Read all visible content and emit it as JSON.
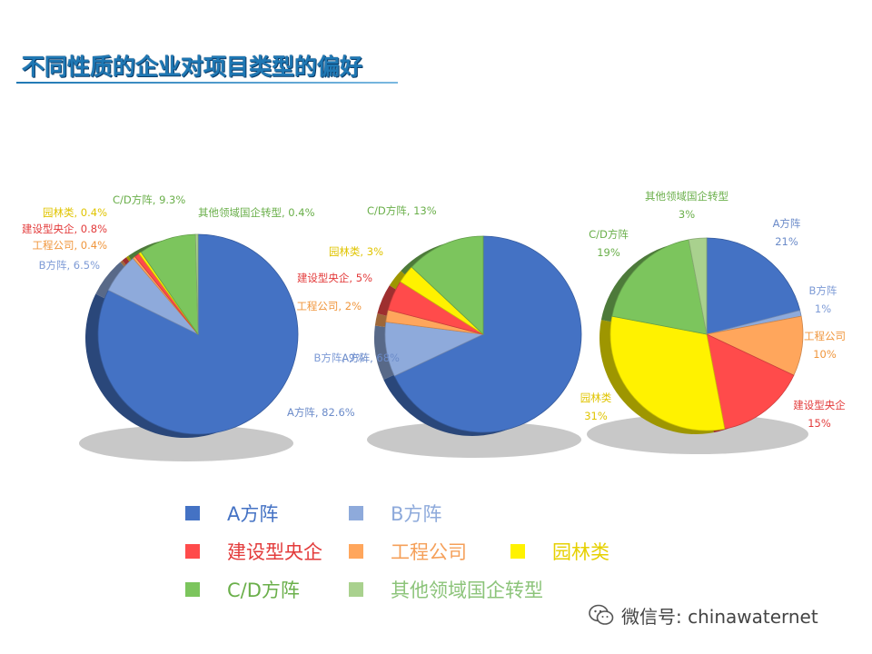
{
  "title": "不同性质的企业对项目类型的偏好",
  "colors": {
    "a": "#4472C4",
    "b": "#8EAADB",
    "build": "#FF4B4B",
    "eng": "#FFA65C",
    "garden": "#FFF200",
    "cd": "#7CC55D",
    "other": "#A9D18E"
  },
  "legend": [
    {
      "key": "a",
      "label": "A方阵"
    },
    {
      "key": "b",
      "label": "B方阵"
    },
    {
      "key": "build",
      "label": "建设型央企"
    },
    {
      "key": "eng",
      "label": "工程公司"
    },
    {
      "key": "garden",
      "label": "园林类"
    },
    {
      "key": "cd",
      "label": "C/D方阵"
    },
    {
      "key": "other",
      "label": "其他领域国企转型"
    }
  ],
  "chart_data": [
    {
      "type": "pie",
      "slices": [
        {
          "key": "a",
          "label": "A方阵, 82.6%",
          "value": 82.6
        },
        {
          "key": "b",
          "label": "B方阵, 6.5%",
          "value": 6.5
        },
        {
          "key": "eng",
          "label": "工程公司, 0.4%",
          "value": 0.4
        },
        {
          "key": "build",
          "label": "建设型央企, 0.8%",
          "value": 0.8
        },
        {
          "key": "garden",
          "label": "园林类, 0.4%",
          "value": 0.4
        },
        {
          "key": "cd",
          "label": "C/D方阵, 9.3%",
          "value": 9.3
        },
        {
          "key": "other",
          "label": "其他领域国企转型, 0.4%",
          "value": 0.4
        }
      ]
    },
    {
      "type": "pie",
      "slices": [
        {
          "key": "a",
          "label": "A方阵, 68%",
          "value": 68
        },
        {
          "key": "b",
          "label": "B方阵, 9%",
          "value": 9
        },
        {
          "key": "eng",
          "label": "工程公司, 2%",
          "value": 2
        },
        {
          "key": "build",
          "label": "建设型央企, 5%",
          "value": 5
        },
        {
          "key": "garden",
          "label": "园林类, 3%",
          "value": 3
        },
        {
          "key": "cd",
          "label": "C/D方阵, 13%",
          "value": 13
        }
      ]
    },
    {
      "type": "pie",
      "slices": [
        {
          "key": "a",
          "label": "A方阵\n21%",
          "value": 21
        },
        {
          "key": "b",
          "label": "B方阵\n1%",
          "value": 1
        },
        {
          "key": "eng",
          "label": "工程公司\n10%",
          "value": 10
        },
        {
          "key": "build",
          "label": "建设型央企\n15%",
          "value": 15
        },
        {
          "key": "garden",
          "label": "园林类\n31%",
          "value": 31
        },
        {
          "key": "cd",
          "label": "C/D方阵\n19%",
          "value": 19
        },
        {
          "key": "other",
          "label": "其他领域国企转型\n3%",
          "value": 3
        }
      ]
    }
  ],
  "watermark": {
    "text": "微信号: chinawaternet"
  }
}
